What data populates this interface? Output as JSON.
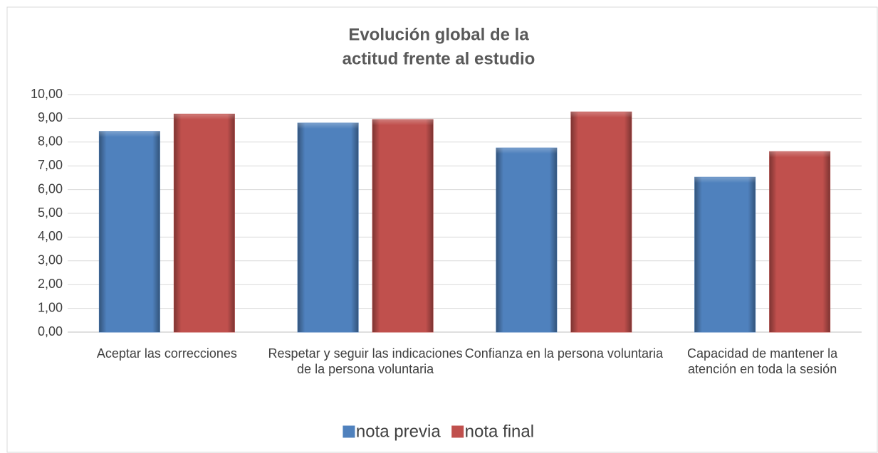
{
  "chart_data": {
    "type": "bar",
    "title": [
      "Evolución global de la",
      "actitud frente al estudio"
    ],
    "categories": [
      "Aceptar las correcciones",
      "Respetar y seguir las indicaciones de la persona voluntaria",
      "Confianza en la persona voluntaria",
      "Capacidad de mantener la atención en toda la sesión"
    ],
    "series": [
      {
        "name": "nota previa",
        "color": "#4f81bd",
        "values": [
          8.45,
          8.8,
          7.75,
          6.52
        ]
      },
      {
        "name": "nota final",
        "color": "#c0504d",
        "values": [
          9.18,
          8.95,
          9.27,
          7.6
        ]
      }
    ],
    "ylim": [
      0,
      10
    ],
    "yticks": [
      {
        "value": 0,
        "label": "0,00"
      },
      {
        "value": 1,
        "label": "1,00"
      },
      {
        "value": 2,
        "label": "2,00"
      },
      {
        "value": 3,
        "label": "3,00"
      },
      {
        "value": 4,
        "label": "4,00"
      },
      {
        "value": 5,
        "label": "5,00"
      },
      {
        "value": 6,
        "label": "6,00"
      },
      {
        "value": 7,
        "label": "7,00"
      },
      {
        "value": 8,
        "label": "8,00"
      },
      {
        "value": 9,
        "label": "9,00"
      },
      {
        "value": 10,
        "label": "10,00"
      }
    ],
    "grid": true,
    "legend": "bottom"
  }
}
